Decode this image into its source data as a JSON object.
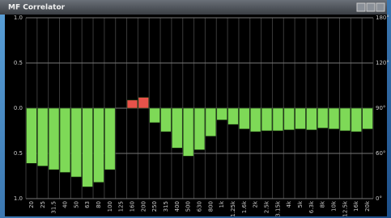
{
  "window": {
    "title": "MF Correlator"
  },
  "chart_data": {
    "type": "bar",
    "categories": [
      "20",
      "25",
      "31.5",
      "40",
      "50",
      "63",
      "80",
      "100",
      "125",
      "160",
      "200",
      "250",
      "315",
      "400",
      "500",
      "630",
      "800",
      "1k",
      "1.25k",
      "1.6k",
      "2k",
      "2.5k",
      "3.15k",
      "4k",
      "5k",
      "6.3k",
      "8k",
      "10k",
      "12.5k",
      "16k",
      "20k"
    ],
    "values": [
      -0.61,
      -0.64,
      -0.68,
      -0.71,
      -0.76,
      -0.87,
      -0.82,
      -0.68,
      null,
      0.09,
      0.12,
      -0.16,
      -0.26,
      -0.44,
      -0.53,
      -0.46,
      -0.31,
      -0.13,
      -0.18,
      -0.23,
      -0.26,
      -0.25,
      -0.25,
      -0.24,
      -0.23,
      -0.24,
      -0.22,
      -0.23,
      -0.25,
      -0.26,
      -0.23
    ],
    "positive_color": "#e8524a",
    "negative_color": "#7ed957",
    "ylim": [
      -1,
      1
    ],
    "yticks": [
      {
        "value": 1,
        "label": "1.0"
      },
      {
        "value": 0.5,
        "label": "0.5"
      },
      {
        "value": 0,
        "label": "0.0"
      },
      {
        "value": -0.5,
        "label": "0.5"
      },
      {
        "value": -1,
        "label": "1.0"
      }
    ],
    "y2ticks": [
      "180°",
      "120°",
      "90°",
      "60°",
      "0°"
    ],
    "grid": true
  }
}
